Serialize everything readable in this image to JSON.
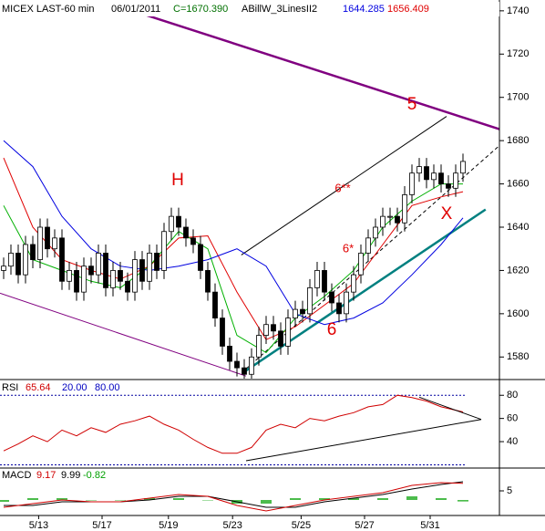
{
  "chart_data": {
    "type": "candlestick",
    "title": "MICEX LAST-60 min",
    "date": "06/01/2011",
    "close_label": "C=1670.390",
    "study": "ABillW_3LinesII2",
    "ohlc": [
      [
        1620,
        1626,
        1616,
        1622
      ],
      [
        1622,
        1632,
        1618,
        1628
      ],
      [
        1628,
        1632,
        1614,
        1618
      ],
      [
        1618,
        1636,
        1614,
        1632
      ],
      [
        1632,
        1636,
        1621,
        1625
      ],
      [
        1625,
        1644,
        1621,
        1640
      ],
      [
        1640,
        1644,
        1626,
        1630
      ],
      [
        1630,
        1639,
        1626,
        1635
      ],
      [
        1635,
        1639,
        1611,
        1615
      ],
      [
        1615,
        1624,
        1611,
        1620
      ],
      [
        1620,
        1624,
        1606,
        1610
      ],
      [
        1610,
        1626,
        1606,
        1622
      ],
      [
        1622,
        1626,
        1614,
        1618
      ],
      [
        1618,
        1632,
        1614,
        1628
      ],
      [
        1628,
        1632,
        1608,
        1612
      ],
      [
        1612,
        1624,
        1608,
        1620
      ],
      [
        1620,
        1624,
        1611,
        1615
      ],
      [
        1615,
        1619,
        1606,
        1610
      ],
      [
        1610,
        1629,
        1606,
        1625
      ],
      [
        1625,
        1629,
        1611,
        1615
      ],
      [
        1615,
        1632,
        1611,
        1628
      ],
      [
        1628,
        1632,
        1616,
        1620
      ],
      [
        1620,
        1642,
        1616,
        1638
      ],
      [
        1638,
        1649,
        1634,
        1645
      ],
      [
        1645,
        1649,
        1636,
        1640
      ],
      [
        1640,
        1644,
        1631,
        1635
      ],
      [
        1635,
        1639,
        1628,
        1632
      ],
      [
        1632,
        1636,
        1616,
        1620
      ],
      [
        1620,
        1624,
        1606,
        1610
      ],
      [
        1610,
        1614,
        1594,
        1598
      ],
      [
        1598,
        1602,
        1581,
        1585
      ],
      [
        1585,
        1589,
        1574,
        1578
      ],
      [
        1578,
        1582,
        1571,
        1575
      ],
      [
        1575,
        1579,
        1568,
        1572
      ],
      [
        1572,
        1584,
        1568,
        1580
      ],
      [
        1580,
        1594,
        1576,
        1590
      ],
      [
        1590,
        1599,
        1586,
        1595
      ],
      [
        1595,
        1599,
        1588,
        1592
      ],
      [
        1592,
        1596,
        1581,
        1585
      ],
      [
        1585,
        1602,
        1581,
        1598
      ],
      [
        1598,
        1606,
        1594,
        1602
      ],
      [
        1602,
        1606,
        1596,
        1600
      ],
      [
        1600,
        1616,
        1596,
        1612
      ],
      [
        1612,
        1624,
        1608,
        1620
      ],
      [
        1620,
        1624,
        1606,
        1610
      ],
      [
        1610,
        1614,
        1601,
        1605
      ],
      [
        1605,
        1609,
        1596,
        1600
      ],
      [
        1600,
        1614,
        1596,
        1610
      ],
      [
        1610,
        1622,
        1606,
        1618
      ],
      [
        1618,
        1632,
        1614,
        1628
      ],
      [
        1628,
        1639,
        1624,
        1635
      ],
      [
        1635,
        1644,
        1631,
        1640
      ],
      [
        1640,
        1649,
        1636,
        1645
      ],
      [
        1645,
        1649,
        1641,
        1645
      ],
      [
        1645,
        1649,
        1638,
        1642
      ],
      [
        1642,
        1659,
        1638,
        1655
      ],
      [
        1655,
        1669,
        1651,
        1665
      ],
      [
        1665,
        1672,
        1661,
        1668
      ],
      [
        1668,
        1672,
        1658,
        1662
      ],
      [
        1662,
        1669,
        1658,
        1665
      ],
      [
        1665,
        1669,
        1656,
        1660
      ],
      [
        1660,
        1664,
        1654,
        1658
      ],
      [
        1658,
        1669,
        1654,
        1665
      ],
      [
        1665,
        1674,
        1661,
        1670.39
      ]
    ],
    "xlim": [
      -0.5,
      68
    ],
    "xticks": [
      {
        "value": 4.8,
        "label": "5/13"
      },
      {
        "value": 13.5,
        "label": "5/17"
      },
      {
        "value": 22.6,
        "label": "5/19"
      },
      {
        "value": 31.4,
        "label": "5/23"
      },
      {
        "value": 40.8,
        "label": "5/25"
      },
      {
        "value": 49.5,
        "label": "5/27"
      },
      {
        "value": 58.5,
        "label": "5/31"
      }
    ],
    "ylim": [
      1570,
      1745
    ],
    "yticks": [
      1580,
      1600,
      1620,
      1640,
      1660,
      1680,
      1700,
      1720,
      1740
    ],
    "ma_x": [
      0,
      4,
      8,
      12,
      16,
      20,
      24,
      28,
      32,
      36,
      40,
      44,
      48,
      52,
      56,
      60,
      63
    ],
    "ma": [
      {
        "color": "#e00000",
        "values": [
          1672,
          1640,
          1625,
          1620,
          1616,
          1622,
          1635,
          1636,
          1610,
          1588,
          1594,
          1604,
          1614,
          1632,
          1650,
          1654,
          1656.409
        ]
      },
      {
        "color": "#00b000",
        "values": [
          1650,
          1625,
          1620,
          1615,
          1612,
          1622,
          1638,
          1630,
          1590,
          1582,
          1598,
          1608,
          1620,
          1640,
          1652,
          1660,
          1660
        ]
      },
      {
        "color": "#0000e0",
        "values": [
          1680,
          1668,
          1645,
          1630,
          1622,
          1620,
          1622,
          1625,
          1630,
          1622,
          1600,
          1595,
          1598,
          1605,
          1618,
          1632,
          1644.285
        ]
      }
    ],
    "trendlines": [
      {
        "color": "#800080",
        "style": "thick",
        "x": [
          18.9,
          68
        ],
        "y": [
          1738.7,
          1685.3
        ]
      },
      {
        "color": "#800080",
        "style": "thin",
        "x": [
          -0.5,
          33.25
        ],
        "y": [
          1609.5,
          1571.2
        ]
      },
      {
        "color": "#000000",
        "style": "thin",
        "x": [
          32.6,
          60.75
        ],
        "y": [
          1627.2,
          1691.2
        ]
      },
      {
        "color": "#000000",
        "style": "dashed",
        "x": [
          33.25,
          68
        ],
        "y": [
          1574.5,
          1677.7
        ]
      },
      {
        "color": "#008080",
        "style": "thick",
        "x": [
          33.25,
          66.1
        ],
        "y": [
          1573.7,
          1648.2
        ]
      }
    ],
    "annotations": [
      "H",
      "5",
      "6**",
      "6*",
      "6",
      "X"
    ],
    "rsi": {
      "label": "RSI",
      "color": "#d00000",
      "x": [
        0,
        2,
        4,
        6,
        8,
        10,
        12,
        14,
        16,
        18,
        20,
        22,
        24,
        26,
        28,
        30,
        32,
        34,
        36,
        38,
        40,
        42,
        44,
        46,
        48,
        50,
        52,
        54,
        56,
        58,
        60,
        63
      ],
      "values": [
        32,
        38,
        45,
        40,
        50,
        45,
        52,
        48,
        55,
        58,
        62,
        55,
        50,
        42,
        35,
        30,
        30,
        35,
        50,
        55,
        52,
        60,
        58,
        62,
        65,
        70,
        72,
        80,
        78,
        75,
        70,
        65.64
      ],
      "ylim": [
        18,
        92
      ],
      "yticks": [
        40,
        60,
        80
      ],
      "levels": [
        {
          "value": 20,
          "label": "20.00"
        },
        {
          "value": 80,
          "label": "80.00"
        }
      ],
      "lines": [
        {
          "x": [
            33.25,
            65.5
          ],
          "y": [
            23.5,
            59.2
          ]
        },
        {
          "x": [
            57,
            65.5
          ],
          "y": [
            78.4,
            59.2
          ]
        }
      ]
    },
    "macd": {
      "label": "MACD",
      "ylim": [
        -8.5,
        17
      ],
      "yticks": [
        5
      ],
      "macd_color": "#d00000",
      "signal_color": "#000000",
      "histogram_color": "#00a000",
      "macd": [
        -4,
        -2,
        0,
        -1,
        -1,
        1,
        3,
        2,
        -3,
        -6,
        -3,
        0,
        2,
        4,
        8,
        9.5,
        9.17
      ],
      "signal": [
        -3,
        -3,
        -1,
        -1,
        -1,
        0,
        2,
        2,
        -1,
        -4,
        -4,
        -1,
        1,
        3,
        6,
        8.5,
        9.99
      ],
      "histogram": [
        -1,
        1,
        1,
        0,
        0,
        1,
        1,
        0,
        -2,
        -2,
        1,
        1,
        1,
        1,
        2,
        1,
        -0.82
      ]
    }
  }
}
